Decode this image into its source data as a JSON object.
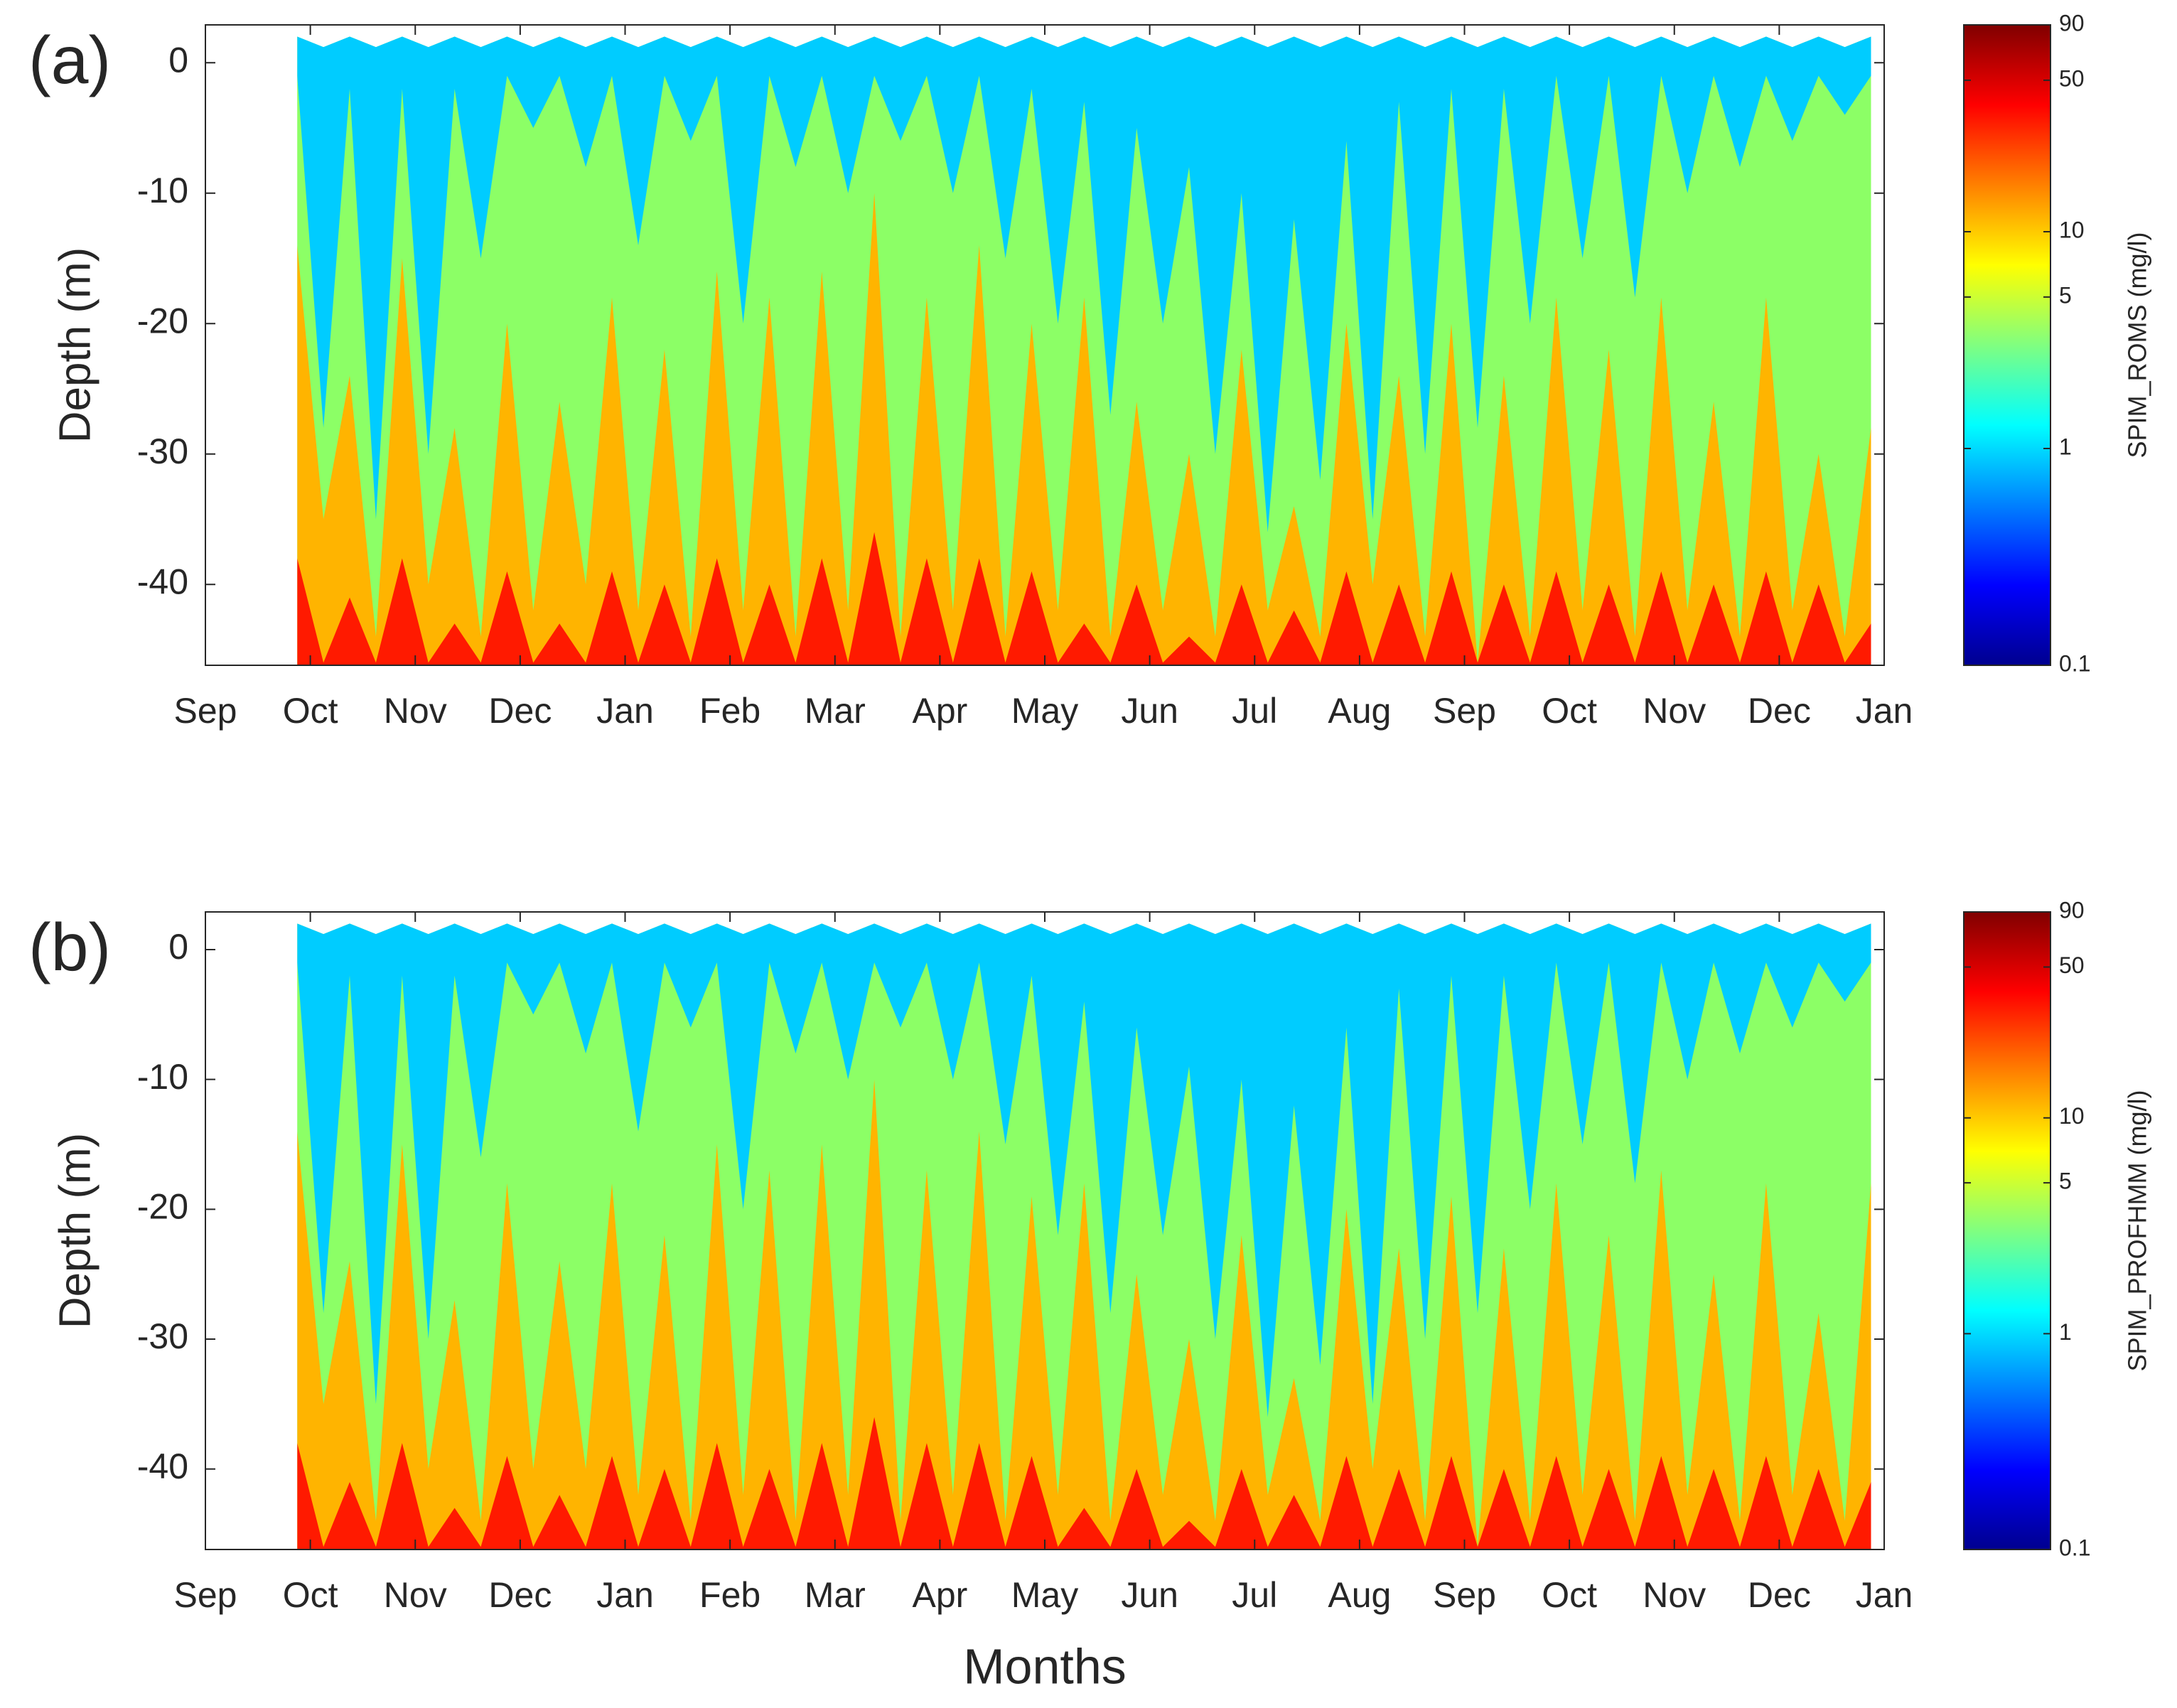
{
  "chart_data": [
    {
      "type": "depth-time",
      "panel_label": "(a)",
      "y_label": "Depth (m)",
      "xlim": [
        0,
        16
      ],
      "xticks": [
        {
          "value": 0,
          "label": "Sep"
        },
        {
          "value": 1,
          "label": "Oct"
        },
        {
          "value": 2,
          "label": "Nov"
        },
        {
          "value": 3,
          "label": "Dec"
        },
        {
          "value": 4,
          "label": "Jan"
        },
        {
          "value": 5,
          "label": "Feb"
        },
        {
          "value": 6,
          "label": "Mar"
        },
        {
          "value": 7,
          "label": "Apr"
        },
        {
          "value": 8,
          "label": "May"
        },
        {
          "value": 9,
          "label": "Jun"
        },
        {
          "value": 10,
          "label": "Jul"
        },
        {
          "value": 11,
          "label": "Aug"
        },
        {
          "value": 12,
          "label": "Sep"
        },
        {
          "value": 13,
          "label": "Oct"
        },
        {
          "value": 14,
          "label": "Nov"
        },
        {
          "value": 15,
          "label": "Dec"
        },
        {
          "value": 16,
          "label": "Jan"
        }
      ],
      "ylim": [
        -46.2,
        2.9
      ],
      "yticks": [
        -40,
        -30,
        -20,
        -10,
        0
      ],
      "colorbar_label": "SPIM_ROMS (mg/l)",
      "clim": [
        0.1,
        90
      ],
      "clog": true,
      "cticks": [
        0.1,
        1,
        5,
        10,
        50,
        90
      ],
      "colormap": [
        "#00008f",
        "#0000ff",
        "#0080ff",
        "#00ffff",
        "#80ff80",
        "#ffff00",
        "#ff8000",
        "#ff0000",
        "#800000"
      ],
      "x": [
        0.875,
        1.125,
        1.375,
        1.625,
        1.875,
        2.125,
        2.375,
        2.625,
        2.875,
        3.125,
        3.375,
        3.625,
        3.875,
        4.125,
        4.375,
        4.625,
        4.875,
        5.125,
        5.375,
        5.625,
        5.875,
        6.125,
        6.375,
        6.625,
        6.875,
        7.125,
        7.375,
        7.625,
        7.875,
        8.125,
        8.375,
        8.625,
        8.875,
        9.125,
        9.375,
        9.625,
        9.875,
        10.125,
        10.375,
        10.625,
        10.875,
        11.125,
        11.375,
        11.625,
        11.875,
        12.125,
        12.375,
        12.625,
        12.875,
        13.125,
        13.375,
        13.625,
        13.875,
        14.125,
        14.375,
        14.625,
        14.875,
        15.125,
        15.375,
        15.625,
        15.875
      ],
      "series": [
        {
          "color": "#8cff66",
          "fill": "down",
          "values": [
            2,
            1.2,
            2,
            1.2,
            2,
            1.2,
            2,
            1.2,
            2,
            1.2,
            2,
            1.2,
            2,
            1.2,
            2,
            1.2,
            2,
            1.2,
            2,
            1.2,
            2,
            1.2,
            2,
            1.2,
            2,
            1.2,
            2,
            1.2,
            2,
            1.2,
            2,
            1.2,
            2,
            1.2,
            2,
            1.2,
            2,
            1.2,
            2,
            1.2,
            2,
            1.2,
            2,
            1.2,
            2,
            1.2,
            2,
            1.2,
            2,
            1.2,
            2,
            1.2,
            2,
            1.2,
            2,
            1.2,
            2,
            1.2,
            2,
            1.2,
            2
          ]
        },
        {
          "color": "#00ccff",
          "fill": "up",
          "values": [
            -1,
            -28,
            -2,
            -35,
            -2,
            -30,
            -2,
            -15,
            -1,
            -5,
            -1,
            -8,
            -1,
            -14,
            -1,
            -6,
            -1,
            -20,
            -1,
            -8,
            -1,
            -10,
            -1,
            -6,
            -1,
            -10,
            -1,
            -15,
            -2,
            -20,
            -3,
            -27,
            -5,
            -20,
            -8,
            -30,
            -10,
            -36,
            -12,
            -32,
            -6,
            -35,
            -3,
            -30,
            -2,
            -28,
            -2,
            -20,
            -1,
            -15,
            -1,
            -18,
            -1,
            -10,
            -1,
            -8,
            -1,
            -6,
            -1,
            -4,
            -1
          ]
        },
        {
          "color": "#ffb400",
          "fill": "down",
          "values": [
            -14,
            -35,
            -24,
            -44,
            -15,
            -40,
            -28,
            -44,
            -20,
            -42,
            -26,
            -40,
            -18,
            -42,
            -22,
            -44,
            -16,
            -42,
            -18,
            -44,
            -16,
            -42,
            -10,
            -44,
            -18,
            -42,
            -14,
            -44,
            -20,
            -42,
            -18,
            -44,
            -26,
            -42,
            -30,
            -44,
            -22,
            -42,
            -34,
            -44,
            -20,
            -40,
            -24,
            -44,
            -20,
            -46,
            -24,
            -44,
            -18,
            -42,
            -22,
            -44,
            -18,
            -42,
            -26,
            -44,
            -18,
            -42,
            -30,
            -44,
            -28
          ]
        },
        {
          "color": "#ff1a00",
          "fill": "down",
          "values": [
            -38,
            -46,
            -41,
            -46,
            -38,
            -46,
            -43,
            -46,
            -39,
            -46,
            -43,
            -46,
            -39,
            -46,
            -40,
            -46,
            -38,
            -46,
            -40,
            -46,
            -38,
            -46,
            -36,
            -46,
            -38,
            -46,
            -38,
            -46,
            -39,
            -46,
            -43,
            -46,
            -40,
            -46,
            -44,
            -46,
            -40,
            -46,
            -42,
            -46,
            -39,
            -46,
            -40,
            -46,
            -39,
            -46,
            -40,
            -46,
            -39,
            -46,
            -40,
            -46,
            -39,
            -46,
            -40,
            -46,
            -39,
            -46,
            -40,
            -46,
            -43
          ]
        }
      ]
    },
    {
      "type": "depth-time",
      "panel_label": "(b)",
      "y_label": "Depth (m)",
      "x_label": "Months",
      "xlim": [
        0,
        16
      ],
      "xticks": [
        {
          "value": 0,
          "label": "Sep"
        },
        {
          "value": 1,
          "label": "Oct"
        },
        {
          "value": 2,
          "label": "Nov"
        },
        {
          "value": 3,
          "label": "Dec"
        },
        {
          "value": 4,
          "label": "Jan"
        },
        {
          "value": 5,
          "label": "Feb"
        },
        {
          "value": 6,
          "label": "Mar"
        },
        {
          "value": 7,
          "label": "Apr"
        },
        {
          "value": 8,
          "label": "May"
        },
        {
          "value": 9,
          "label": "Jun"
        },
        {
          "value": 10,
          "label": "Jul"
        },
        {
          "value": 11,
          "label": "Aug"
        },
        {
          "value": 12,
          "label": "Sep"
        },
        {
          "value": 13,
          "label": "Oct"
        },
        {
          "value": 14,
          "label": "Nov"
        },
        {
          "value": 15,
          "label": "Dec"
        },
        {
          "value": 16,
          "label": "Jan"
        }
      ],
      "ylim": [
        -46.2,
        2.9
      ],
      "yticks": [
        -40,
        -30,
        -20,
        -10,
        0
      ],
      "colorbar_label": "SPIM_PROFHMM (mg/l)",
      "clim": [
        0.1,
        90
      ],
      "clog": true,
      "cticks": [
        0.1,
        1,
        5,
        10,
        50,
        90
      ],
      "colormap": [
        "#00008f",
        "#0000ff",
        "#0080ff",
        "#00ffff",
        "#80ff80",
        "#ffff00",
        "#ff8000",
        "#ff0000",
        "#800000"
      ],
      "x": [
        0.875,
        1.125,
        1.375,
        1.625,
        1.875,
        2.125,
        2.375,
        2.625,
        2.875,
        3.125,
        3.375,
        3.625,
        3.875,
        4.125,
        4.375,
        4.625,
        4.875,
        5.125,
        5.375,
        5.625,
        5.875,
        6.125,
        6.375,
        6.625,
        6.875,
        7.125,
        7.375,
        7.625,
        7.875,
        8.125,
        8.375,
        8.625,
        8.875,
        9.125,
        9.375,
        9.625,
        9.875,
        10.125,
        10.375,
        10.625,
        10.875,
        11.125,
        11.375,
        11.625,
        11.875,
        12.125,
        12.375,
        12.625,
        12.875,
        13.125,
        13.375,
        13.625,
        13.875,
        14.125,
        14.375,
        14.625,
        14.875,
        15.125,
        15.375,
        15.625,
        15.875
      ],
      "series": [
        {
          "color": "#8cff66",
          "fill": "down",
          "values": [
            2,
            1.2,
            2,
            1.2,
            2,
            1.2,
            2,
            1.2,
            2,
            1.2,
            2,
            1.2,
            2,
            1.2,
            2,
            1.2,
            2,
            1.2,
            2,
            1.2,
            2,
            1.2,
            2,
            1.2,
            2,
            1.2,
            2,
            1.2,
            2,
            1.2,
            2,
            1.2,
            2,
            1.2,
            2,
            1.2,
            2,
            1.2,
            2,
            1.2,
            2,
            1.2,
            2,
            1.2,
            2,
            1.2,
            2,
            1.2,
            2,
            1.2,
            2,
            1.2,
            2,
            1.2,
            2,
            1.2,
            2,
            1.2,
            2,
            1.2,
            2
          ]
        },
        {
          "color": "#00ccff",
          "fill": "up",
          "values": [
            -1,
            -28,
            -2,
            -35,
            -2,
            -30,
            -2,
            -16,
            -1,
            -5,
            -1,
            -8,
            -1,
            -14,
            -1,
            -6,
            -1,
            -20,
            -1,
            -8,
            -1,
            -10,
            -1,
            -6,
            -1,
            -10,
            -1,
            -15,
            -2,
            -22,
            -4,
            -28,
            -6,
            -22,
            -9,
            -30,
            -10,
            -36,
            -12,
            -32,
            -6,
            -35,
            -3,
            -30,
            -2,
            -28,
            -2,
            -20,
            -1,
            -15,
            -1,
            -18,
            -1,
            -10,
            -1,
            -8,
            -1,
            -6,
            -1,
            -4,
            -1
          ]
        },
        {
          "color": "#ffb400",
          "fill": "down",
          "values": [
            -14,
            -35,
            -24,
            -44,
            -15,
            -40,
            -27,
            -44,
            -18,
            -40,
            -24,
            -40,
            -18,
            -42,
            -22,
            -44,
            -15,
            -42,
            -17,
            -44,
            -15,
            -42,
            -10,
            -44,
            -17,
            -42,
            -14,
            -44,
            -19,
            -42,
            -18,
            -44,
            -25,
            -42,
            -30,
            -44,
            -22,
            -42,
            -33,
            -44,
            -20,
            -40,
            -23,
            -44,
            -19,
            -46,
            -23,
            -44,
            -18,
            -42,
            -22,
            -44,
            -17,
            -42,
            -25,
            -44,
            -18,
            -42,
            -28,
            -44,
            -18
          ]
        },
        {
          "color": "#ff1a00",
          "fill": "down",
          "values": [
            -38,
            -46,
            -41,
            -46,
            -38,
            -46,
            -43,
            -46,
            -39,
            -46,
            -42,
            -46,
            -39,
            -46,
            -40,
            -46,
            -38,
            -46,
            -40,
            -46,
            -38,
            -46,
            -36,
            -46,
            -38,
            -46,
            -38,
            -46,
            -39,
            -46,
            -43,
            -46,
            -40,
            -46,
            -44,
            -46,
            -40,
            -46,
            -42,
            -46,
            -39,
            -46,
            -40,
            -46,
            -39,
            -46,
            -40,
            -46,
            -39,
            -46,
            -40,
            -46,
            -39,
            -46,
            -40,
            -46,
            -39,
            -46,
            -40,
            -46,
            -41
          ]
        }
      ]
    }
  ]
}
